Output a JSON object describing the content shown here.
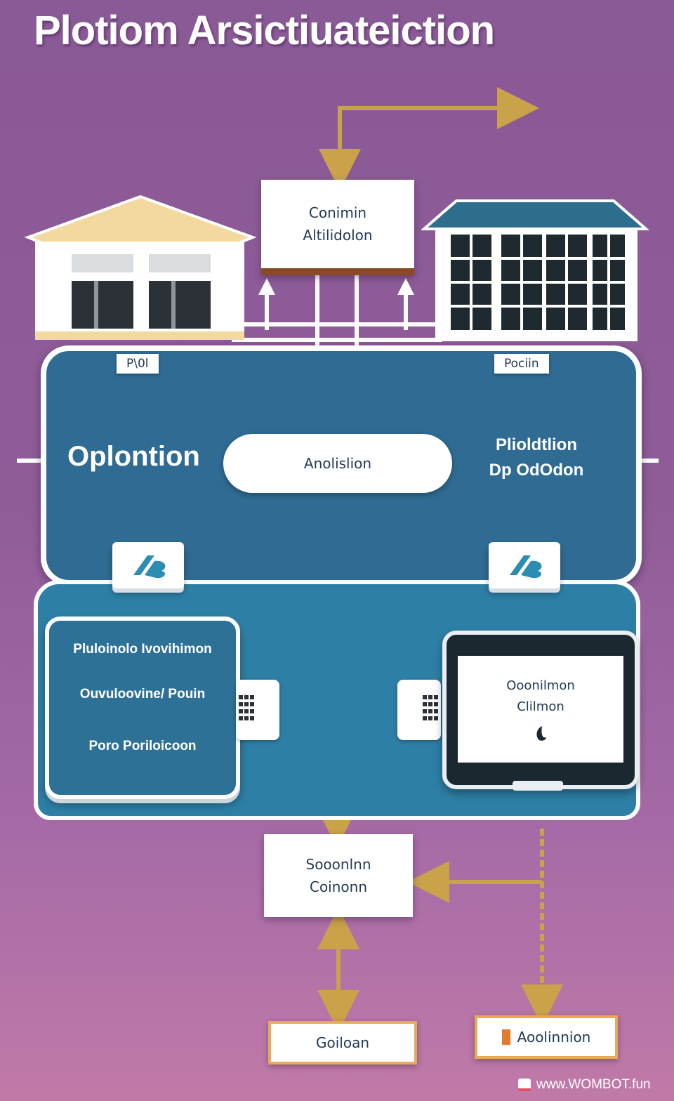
{
  "title": "Plotiom Arsictiuateiction",
  "top_box": {
    "line1": "Conimin",
    "line2": "Altilidolon"
  },
  "tags": {
    "left": "P\\0l",
    "right": "Pociin"
  },
  "main_panel": {
    "left_label": "Oplontion",
    "center_pill": "Anolislion",
    "right_label": {
      "line1": "Plioldtlion",
      "line2": "Dp OdOdon"
    }
  },
  "left_card": {
    "line1": "Pluloinolo Ivovihimon",
    "line2": "Ouvuloovine/ Pouin",
    "line3": "Poro Poriloicoon"
  },
  "monitor": {
    "line1": "Ooonilmon",
    "line2": "Clilmon"
  },
  "middle_box": {
    "line1": "Sooonlnn",
    "line2": "Coinonn"
  },
  "bottom_left_scroll": "Goiloan",
  "bottom_right_scroll": "Aoolinnion",
  "watermark": "www.WOMBOT.fun",
  "colors": {
    "background_top": "#8a5a96",
    "background_bottom": "#c07aa8",
    "panel_blue": "#2f6b92",
    "arrow_gold": "#c9a24a",
    "roof_beige": "#f3d9a0",
    "roof_teal": "#2c6e8c"
  }
}
